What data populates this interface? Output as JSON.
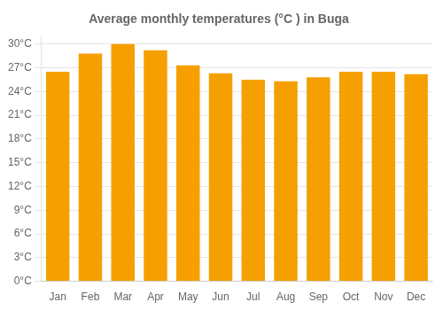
{
  "chart_data": {
    "type": "bar",
    "title": "Average monthly temperatures (°C ) in Buga",
    "categories": [
      "Jan",
      "Feb",
      "Mar",
      "Apr",
      "May",
      "Jun",
      "Jul",
      "Aug",
      "Sep",
      "Oct",
      "Nov",
      "Dec"
    ],
    "values": [
      26.5,
      28.8,
      30.0,
      29.2,
      27.3,
      26.3,
      25.5,
      25.3,
      25.8,
      26.5,
      26.5,
      26.2
    ],
    "color": "#F5A000",
    "ylim": [
      0,
      31
    ],
    "yticks": [
      {
        "value": 0,
        "label": "0°C"
      },
      {
        "value": 3,
        "label": "3°C"
      },
      {
        "value": 6,
        "label": "6°C"
      },
      {
        "value": 9,
        "label": "9°C"
      },
      {
        "value": 12,
        "label": "12°C"
      },
      {
        "value": 15,
        "label": "15°C"
      },
      {
        "value": 18,
        "label": "18°C"
      },
      {
        "value": 21,
        "label": "21°C"
      },
      {
        "value": 24,
        "label": "24°C"
      },
      {
        "value": 27,
        "label": "27°C"
      },
      {
        "value": 30,
        "label": "30°C"
      }
    ],
    "grid": true
  }
}
